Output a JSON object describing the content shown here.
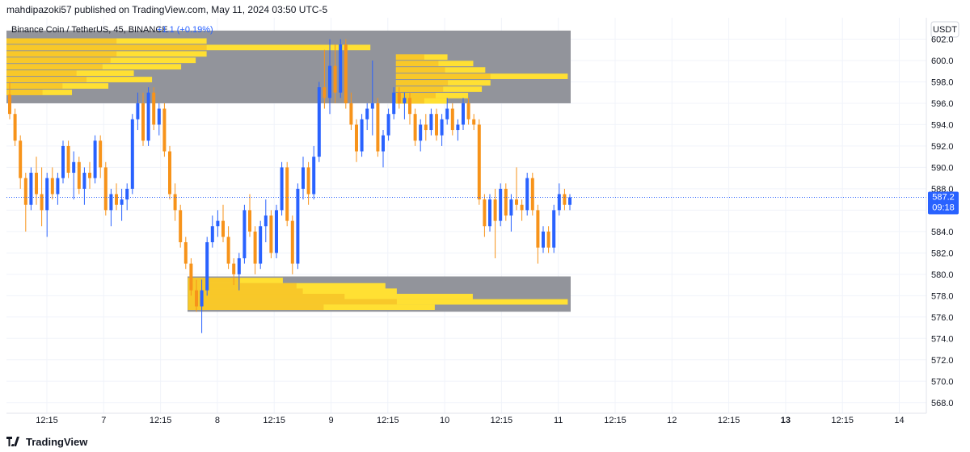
{
  "header": {
    "published_by": "mahdipazoki57 published on TradingView.com, May 11, 2024 03:50 UTC-5"
  },
  "legend": {
    "symbol": "Binance Coin / TetherUS, 45, BINANCE",
    "change": "+1.1 (+0.19%)"
  },
  "price_scale": {
    "currency": "USDT",
    "last_price": "587.2",
    "countdown": "09:18"
  },
  "footer": {
    "brand": "TradingView"
  },
  "colors": {
    "up": "#2962ff",
    "down": "#f7931a",
    "zone_gray": "#8c8e96",
    "profile_yellow": "#ffe033",
    "profile_dark": "#f2b520",
    "last_price_bg": "#2962ff",
    "grid": "#f0f3fa",
    "axis_text": "#131722"
  },
  "chart_data": {
    "type": "candlestick",
    "title": "Binance Coin / TetherUS, 45, BINANCE",
    "ylim": [
      567,
      604
    ],
    "y_ticks": [
      568,
      570,
      572,
      574,
      576,
      578,
      580,
      582,
      584,
      586,
      588,
      590,
      592,
      594,
      596,
      598,
      600,
      602
    ],
    "x_ticks": [
      "12:15",
      "7",
      "12:15",
      "8",
      "12:15",
      "9",
      "12:15",
      "10",
      "12:15",
      "11",
      "12:15",
      "12",
      "12:15",
      "13",
      "12:15",
      "14"
    ],
    "bold_x_ticks": [
      "13"
    ],
    "last_price": 587.2,
    "zones": [
      {
        "name": "supply",
        "low": 596,
        "high": 602.8
      },
      {
        "name": "demand",
        "low": 576.5,
        "high": 579.8
      }
    ],
    "ohlc": [
      [
        596.8,
        598.0,
        594.5,
        595.0
      ],
      [
        595.0,
        595.5,
        592.0,
        592.5
      ],
      [
        592.5,
        593.0,
        588.0,
        589.0
      ],
      [
        589.0,
        589.5,
        584.0,
        586.5
      ],
      [
        586.5,
        590.0,
        586.0,
        589.5
      ],
      [
        589.5,
        591.0,
        586.5,
        587.5
      ],
      [
        587.5,
        590.0,
        584.5,
        586.0
      ],
      [
        586.0,
        589.5,
        583.5,
        589.0
      ],
      [
        589.0,
        590.0,
        587.0,
        587.5
      ],
      [
        587.5,
        589.5,
        586.5,
        589.0
      ],
      [
        589.0,
        592.5,
        588.5,
        592.0
      ],
      [
        592.0,
        592.5,
        589.0,
        589.5
      ],
      [
        589.5,
        591.5,
        587.0,
        590.5
      ],
      [
        590.5,
        591.0,
        587.5,
        588.0
      ],
      [
        588.0,
        590.0,
        586.5,
        589.5
      ],
      [
        589.5,
        590.5,
        588.0,
        589.0
      ],
      [
        589.0,
        593.0,
        588.5,
        592.5
      ],
      [
        592.5,
        593.0,
        589.0,
        590.0
      ],
      [
        590.0,
        590.5,
        585.5,
        586.0
      ],
      [
        586.0,
        588.0,
        584.5,
        587.5
      ],
      [
        587.5,
        588.5,
        586.0,
        586.5
      ],
      [
        586.5,
        588.0,
        585.0,
        587.0
      ],
      [
        587.0,
        588.5,
        586.0,
        588.0
      ],
      [
        588.0,
        595.0,
        587.5,
        594.5
      ],
      [
        594.5,
        597.0,
        593.5,
        596.0
      ],
      [
        596.0,
        597.0,
        592.0,
        592.5
      ],
      [
        592.5,
        597.5,
        592.0,
        597.0
      ],
      [
        597.0,
        597.5,
        593.5,
        594.0
      ],
      [
        594.0,
        596.0,
        593.0,
        595.5
      ],
      [
        595.5,
        596.0,
        591.0,
        591.5
      ],
      [
        591.5,
        592.0,
        587.0,
        587.5
      ],
      [
        587.5,
        588.5,
        585.0,
        586.0
      ],
      [
        586.0,
        586.5,
        582.5,
        583.0
      ],
      [
        583.0,
        583.5,
        580.5,
        581.0
      ],
      [
        581.0,
        581.5,
        578.0,
        578.5
      ],
      [
        578.5,
        579.5,
        576.5,
        577.0
      ],
      [
        577.0,
        579.5,
        574.5,
        578.5
      ],
      [
        578.5,
        583.5,
        578.0,
        583.0
      ],
      [
        583.0,
        585.5,
        582.5,
        584.5
      ],
      [
        584.5,
        586.0,
        583.5,
        585.0
      ],
      [
        585.0,
        586.5,
        583.0,
        583.5
      ],
      [
        583.5,
        584.5,
        580.5,
        581.0
      ],
      [
        581.0,
        581.5,
        579.0,
        580.0
      ],
      [
        580.0,
        582.0,
        578.5,
        581.5
      ],
      [
        581.5,
        586.5,
        581.0,
        586.0
      ],
      [
        586.0,
        587.5,
        583.5,
        584.0
      ],
      [
        584.0,
        584.5,
        580.0,
        581.0
      ],
      [
        581.0,
        585.0,
        580.5,
        584.5
      ],
      [
        584.5,
        587.0,
        583.0,
        585.5
      ],
      [
        585.5,
        586.0,
        581.5,
        582.0
      ],
      [
        582.0,
        586.5,
        581.5,
        586.0
      ],
      [
        586.0,
        590.5,
        585.5,
        590.0
      ],
      [
        590.0,
        590.5,
        584.5,
        585.0
      ],
      [
        585.0,
        585.5,
        580.0,
        581.0
      ],
      [
        581.0,
        588.5,
        580.5,
        588.0
      ],
      [
        588.0,
        591.0,
        587.0,
        590.0
      ],
      [
        590.0,
        590.5,
        586.5,
        587.5
      ],
      [
        587.5,
        592.0,
        587.0,
        591.0
      ],
      [
        591.0,
        598.0,
        590.5,
        597.5
      ],
      [
        597.5,
        601.0,
        595.5,
        596.5
      ],
      [
        596.5,
        602.0,
        595.0,
        599.5
      ],
      [
        599.5,
        601.5,
        596.0,
        597.0
      ],
      [
        597.0,
        602.0,
        596.5,
        601.5
      ],
      [
        601.5,
        602.0,
        595.5,
        596.0
      ],
      [
        596.0,
        597.0,
        593.5,
        594.0
      ],
      [
        594.0,
        594.5,
        590.5,
        591.5
      ],
      [
        591.5,
        595.0,
        591.0,
        594.5
      ],
      [
        594.5,
        596.0,
        593.5,
        595.5
      ],
      [
        595.5,
        600.0,
        593.0,
        596.0
      ],
      [
        596.0,
        596.5,
        591.0,
        591.5
      ],
      [
        591.5,
        593.5,
        590.0,
        593.0
      ],
      [
        593.0,
        595.5,
        592.5,
        595.0
      ],
      [
        595.0,
        597.5,
        594.5,
        597.0
      ],
      [
        597.0,
        597.5,
        595.5,
        596.0
      ],
      [
        596.0,
        597.0,
        594.5,
        596.5
      ],
      [
        596.5,
        597.0,
        594.0,
        595.0
      ],
      [
        595.0,
        595.5,
        592.0,
        592.5
      ],
      [
        592.5,
        594.5,
        591.5,
        594.0
      ],
      [
        594.0,
        595.0,
        592.5,
        593.5
      ],
      [
        593.5,
        595.5,
        593.0,
        595.0
      ],
      [
        595.0,
        595.5,
        592.5,
        593.0
      ],
      [
        593.0,
        595.0,
        592.0,
        594.5
      ],
      [
        594.5,
        596.5,
        594.0,
        595.5
      ],
      [
        595.5,
        596.0,
        593.0,
        593.5
      ],
      [
        593.5,
        594.5,
        592.5,
        594.0
      ],
      [
        594.0,
        596.5,
        593.5,
        596.0
      ],
      [
        596.0,
        596.5,
        594.0,
        594.5
      ],
      [
        594.5,
        595.0,
        593.5,
        594.0
      ],
      [
        594.0,
        594.5,
        586.5,
        587.0
      ],
      [
        587.0,
        587.5,
        583.5,
        584.5
      ],
      [
        584.5,
        587.5,
        584.0,
        587.0
      ],
      [
        587.0,
        588.0,
        581.5,
        585.0
      ],
      [
        585.0,
        588.5,
        584.5,
        588.0
      ],
      [
        588.0,
        588.5,
        585.0,
        585.5
      ],
      [
        585.5,
        587.5,
        584.0,
        587.0
      ],
      [
        587.0,
        590.0,
        586.0,
        586.5
      ],
      [
        586.5,
        587.0,
        585.0,
        586.0
      ],
      [
        586.0,
        589.5,
        585.5,
        589.0
      ],
      [
        589.0,
        589.5,
        585.5,
        586.0
      ],
      [
        586.0,
        586.5,
        581.0,
        582.5
      ],
      [
        582.5,
        584.5,
        582.0,
        584.0
      ],
      [
        584.0,
        584.5,
        582.0,
        582.5
      ],
      [
        582.5,
        586.5,
        582.0,
        586.0
      ],
      [
        586.0,
        588.5,
        585.5,
        587.5
      ],
      [
        587.5,
        588.0,
        586.0,
        586.5
      ],
      [
        586.5,
        587.5,
        586.0,
        587.2
      ]
    ],
    "volume_profiles": [
      {
        "zone": "supply",
        "start_index": 0,
        "end_index": 67,
        "rows": [
          {
            "price": 601.8,
            "volume": 55
          },
          {
            "price": 601.2,
            "volume": 100
          },
          {
            "price": 600.6,
            "volume": 55
          },
          {
            "price": 600.0,
            "volume": 52
          },
          {
            "price": 599.4,
            "volume": 48
          },
          {
            "price": 598.8,
            "volume": 35
          },
          {
            "price": 598.2,
            "volume": 40
          },
          {
            "price": 597.6,
            "volume": 28
          },
          {
            "price": 597.0,
            "volume": 18
          }
        ]
      },
      {
        "zone": "supply",
        "start_index": 73,
        "end_index": 104,
        "rows": [
          {
            "price": 600.3,
            "volume": 30
          },
          {
            "price": 599.7,
            "volume": 45
          },
          {
            "price": 599.1,
            "volume": 52
          },
          {
            "price": 598.5,
            "volume": 100
          },
          {
            "price": 597.9,
            "volume": 55
          },
          {
            "price": 597.3,
            "volume": 50
          },
          {
            "price": 596.7,
            "volume": 42
          },
          {
            "price": 596.2,
            "volume": 30
          }
        ]
      },
      {
        "zone": "demand",
        "start_index": 34,
        "end_index": 104,
        "rows": [
          {
            "price": 579.4,
            "volume": 25
          },
          {
            "price": 578.9,
            "volume": 52
          },
          {
            "price": 578.4,
            "volume": 55
          },
          {
            "price": 577.9,
            "volume": 75
          },
          {
            "price": 577.4,
            "volume": 100
          },
          {
            "price": 576.9,
            "volume": 65
          }
        ]
      }
    ]
  }
}
